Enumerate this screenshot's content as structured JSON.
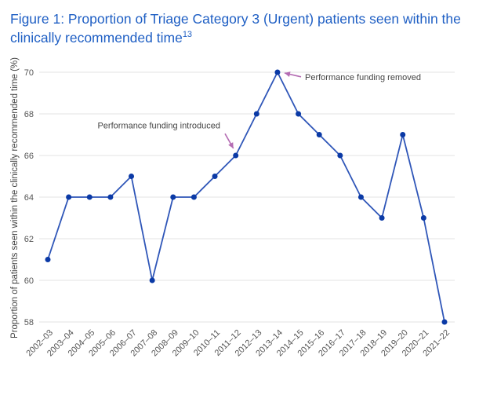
{
  "figure": {
    "title": "Figure 1: Proportion of Triage Category 3 (Urgent) patients seen within the clinically recommended time",
    "title_superscript": "13"
  },
  "chart_data": {
    "type": "line",
    "title": "Figure 1: Proportion of Triage Category 3 (Urgent) patients seen within the clinically recommended time",
    "xlabel": "",
    "ylabel": "Proportion of patients seen within the clinically recommended time (%)",
    "ylim": [
      57,
      70.5
    ],
    "yticks": [
      58,
      60,
      62,
      64,
      66,
      68,
      70
    ],
    "grid": true,
    "legend": "none",
    "line_color": "#2f56b8",
    "point_color": "#0b3aa6",
    "categories": [
      "2002–03",
      "2003–04",
      "2004–05",
      "2005–06",
      "2006–07",
      "2007–08",
      "2008–09",
      "2009–10",
      "2010–11",
      "2011–12",
      "2012–13",
      "2013–14",
      "2014–15",
      "2015–16",
      "2016–17",
      "2017–18",
      "2018–19",
      "2019–20",
      "2020–21",
      "2021–22"
    ],
    "series": [
      {
        "values": [
          61,
          64,
          64,
          64,
          65,
          60,
          64,
          64,
          65,
          66,
          68,
          70,
          68,
          67,
          66,
          64,
          63,
          67,
          63,
          58
        ]
      }
    ],
    "annotations": [
      {
        "text": "Performance funding introduced",
        "category": "2011–12",
        "value": 66
      },
      {
        "text": "Performance funding removed",
        "category": "2013–14",
        "value": 70
      }
    ]
  }
}
